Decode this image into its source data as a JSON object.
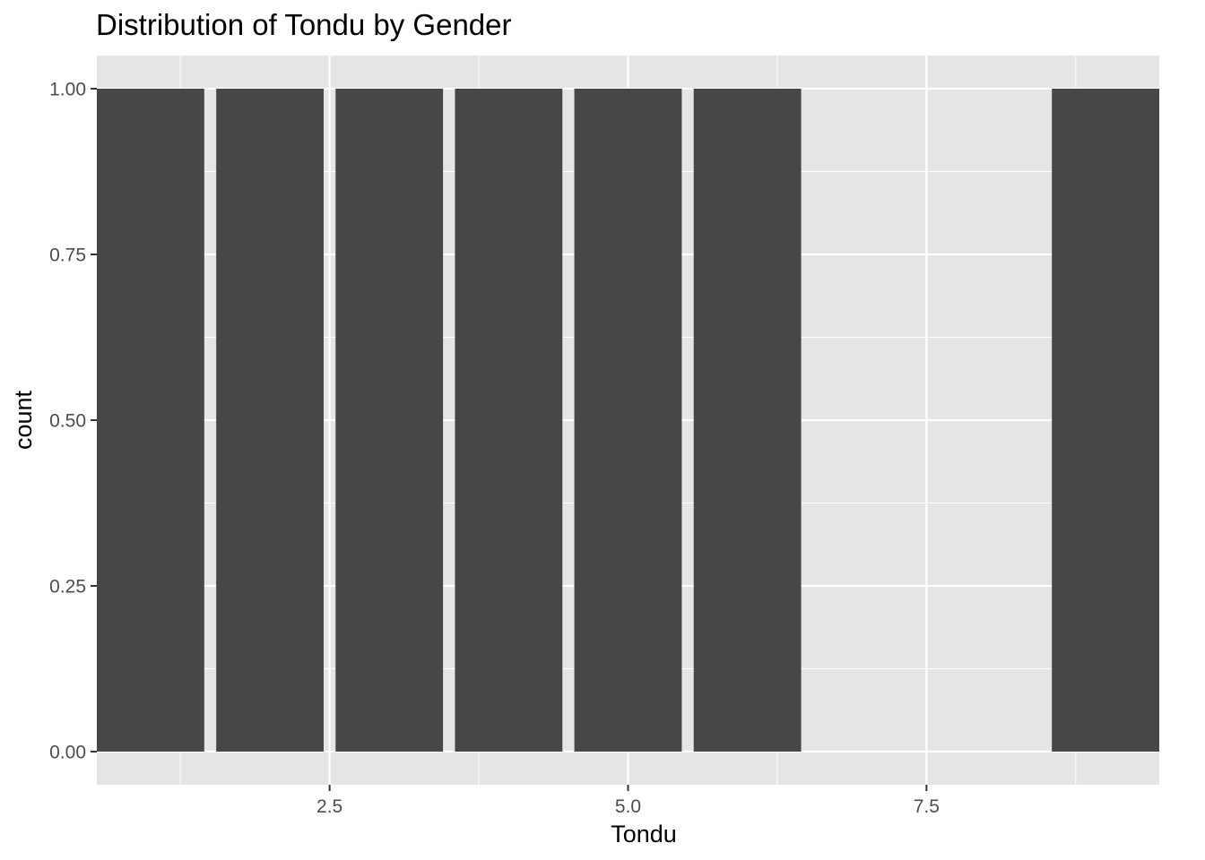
{
  "chart_data": {
    "type": "bar",
    "title": "Distribution of Tondu by Gender",
    "xlabel": "Tondu",
    "ylabel": "count",
    "x": [
      1,
      2,
      3,
      4,
      5,
      6,
      9
    ],
    "values": [
      1,
      1,
      1,
      1,
      1,
      1,
      1
    ],
    "bar_width": 0.9,
    "xlim": [
      0.55,
      9.45
    ],
    "ylim": [
      0,
      1
    ],
    "x_ticks": [
      "2.5",
      "5.0",
      "7.5"
    ],
    "y_ticks": [
      "0.00",
      "0.25",
      "0.50",
      "0.75",
      "1.00"
    ],
    "grid": true,
    "legend": "none",
    "colors": {
      "panel_background": "#e5e5e5",
      "grid_line": "#ffffff",
      "bar_fill": "#474747",
      "tick_color": "#333333"
    }
  }
}
